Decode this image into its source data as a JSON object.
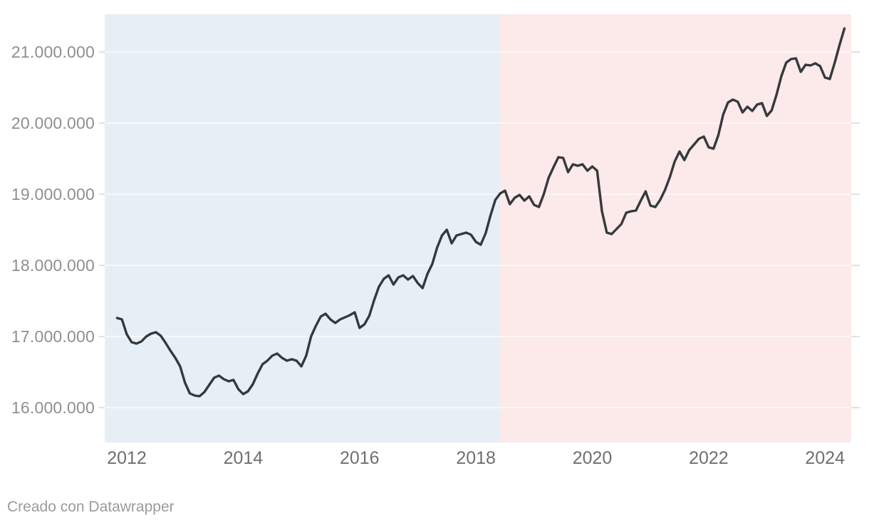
{
  "page": {
    "background": "#ffffff"
  },
  "attribution": {
    "text": "Creado con Datawrapper"
  },
  "chart_data": {
    "type": "line",
    "title": "",
    "legend": "none",
    "grid": true,
    "xlim": [
      2011.62,
      2024.45
    ],
    "ylim": [
      15510000,
      21530000
    ],
    "x_ticks": [
      {
        "year": 2012,
        "label": "2012"
      },
      {
        "year": 2014,
        "label": "2014"
      },
      {
        "year": 2016,
        "label": "2016"
      },
      {
        "year": 2018,
        "label": "2018"
      },
      {
        "year": 2020,
        "label": "2020"
      },
      {
        "year": 2022,
        "label": "2022"
      },
      {
        "year": 2024,
        "label": "2024"
      }
    ],
    "y_ticks": [
      {
        "value": 16000000,
        "label": "16.000.000"
      },
      {
        "value": 17000000,
        "label": "17.000.000"
      },
      {
        "value": 18000000,
        "label": "18.000.000"
      },
      {
        "value": 19000000,
        "label": "19.000.000"
      },
      {
        "value": 20000000,
        "label": "20.000.000"
      },
      {
        "value": 21000000,
        "label": "21.000.000"
      }
    ],
    "regions": [
      {
        "name": "range-highlight-azul",
        "from": 2011.62,
        "to": 2018.417,
        "color": "#e7eff6"
      },
      {
        "name": "range-highlight-rosa",
        "from": 2018.417,
        "to": 2024.45,
        "color": "#fce9e9"
      }
    ],
    "series": [
      {
        "color": "#35393c",
        "start": "2011-11",
        "frequency": "monthly",
        "values": [
          17260000,
          17240000,
          17030000,
          16920000,
          16900000,
          16930000,
          17000000,
          17040000,
          17060000,
          17010000,
          16910000,
          16800000,
          16700000,
          16580000,
          16350000,
          16200000,
          16170000,
          16160000,
          16220000,
          16320000,
          16420000,
          16450000,
          16400000,
          16370000,
          16390000,
          16260000,
          16190000,
          16230000,
          16330000,
          16480000,
          16610000,
          16660000,
          16730000,
          16760000,
          16700000,
          16660000,
          16680000,
          16660000,
          16580000,
          16730000,
          17000000,
          17150000,
          17280000,
          17320000,
          17240000,
          17190000,
          17240000,
          17270000,
          17300000,
          17340000,
          17120000,
          17170000,
          17290000,
          17510000,
          17700000,
          17810000,
          17860000,
          17730000,
          17830000,
          17860000,
          17800000,
          17850000,
          17750000,
          17680000,
          17880000,
          18020000,
          18250000,
          18420000,
          18500000,
          18310000,
          18420000,
          18440000,
          18460000,
          18430000,
          18330000,
          18290000,
          18450000,
          18700000,
          18920000,
          19010000,
          19050000,
          18860000,
          18950000,
          18990000,
          18910000,
          18970000,
          18850000,
          18820000,
          19000000,
          19230000,
          19380000,
          19520000,
          19510000,
          19310000,
          19420000,
          19400000,
          19420000,
          19330000,
          19390000,
          19330000,
          18760000,
          18460000,
          18440000,
          18510000,
          18580000,
          18740000,
          18760000,
          18770000,
          18910000,
          19040000,
          18840000,
          18820000,
          18920000,
          19060000,
          19240000,
          19460000,
          19600000,
          19480000,
          19620000,
          19700000,
          19780000,
          19810000,
          19660000,
          19640000,
          19830000,
          20120000,
          20290000,
          20330000,
          20300000,
          20150000,
          20230000,
          20170000,
          20260000,
          20280000,
          20100000,
          20180000,
          20400000,
          20660000,
          20850000,
          20900000,
          20910000,
          20720000,
          20820000,
          20810000,
          20840000,
          20800000,
          20640000,
          20620000,
          20850000,
          21100000,
          21330000
        ]
      }
    ],
    "colors": {
      "line": "#35393c",
      "grid_outer": "#d8d8d8",
      "grid_inner": "rgba(255,255,255,0.82)",
      "y_label": "#8f8f8f",
      "x_label": "#6f6f6f",
      "footer": "#9b9b9b"
    }
  }
}
